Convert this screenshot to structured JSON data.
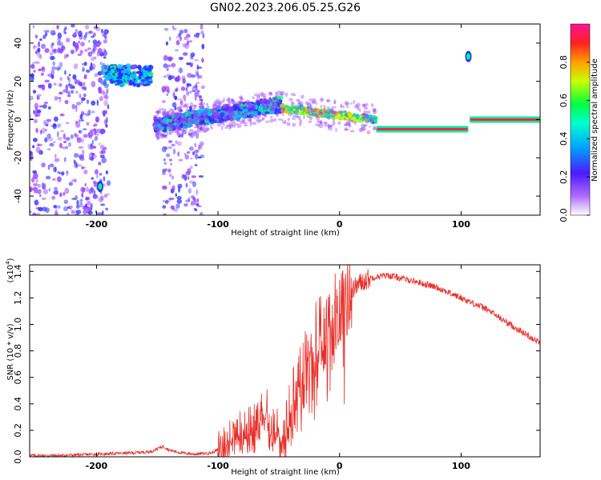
{
  "figure_title": "GN02.2023.206.05.25.G26",
  "chart_data": [
    {
      "type": "heatmap",
      "xlabel": "Height of straight line (km)",
      "ylabel": "Frequency (Hz)",
      "xlim": [
        -255,
        165
      ],
      "ylim": [
        -50,
        50
      ],
      "xticks": [
        -200,
        -100,
        0,
        100
      ],
      "yticks": [
        -40,
        -20,
        0,
        20,
        40
      ],
      "grid": false,
      "colorbar": {
        "label": "Normalized spectral amplitude",
        "range": [
          0,
          1
        ],
        "ticks": [
          "0.0",
          "0.2",
          "0.4",
          "0.6",
          "0.8"
        ],
        "colormap": [
          "#ffffff",
          "#9a3cff",
          "#2a2aff",
          "#00c8ff",
          "#00ff80",
          "#c8ff00",
          "#ffb000",
          "#ff2828",
          "#ff1493"
        ]
      },
      "features": [
        {
          "x_range": [
            -255,
            -190
          ],
          "freq_range": [
            -50,
            50
          ],
          "level": "scattered"
        },
        {
          "x_range": [
            -195,
            -155
          ],
          "freq": 23,
          "level": "medium-high"
        },
        {
          "x": -197,
          "freq": -35,
          "level": "medium"
        },
        {
          "x_range": [
            -145,
            -112
          ],
          "freq_range": [
            -50,
            50
          ],
          "level": "scattered"
        },
        {
          "x_range": [
            -152,
            -48
          ],
          "freq_start": -3,
          "freq_end": 8,
          "level": "medium"
        },
        {
          "x_range": [
            -48,
            30
          ],
          "freq_start": 6,
          "freq_end": 0,
          "level": "high"
        },
        {
          "x_range": [
            30,
            106
          ],
          "freq": -5,
          "level": "high"
        },
        {
          "x": 106,
          "freq": 33,
          "level": "medium"
        },
        {
          "x_range": [
            107,
            165
          ],
          "freq": 0,
          "level": "high"
        }
      ]
    },
    {
      "type": "line",
      "xlabel": "Height of straight line (km)",
      "ylabel": "SNR (10 * v/v)",
      "y_multiplier": "(x10",
      "y_multiplier_exponent": "4",
      "y_multiplier_close": ")",
      "xlim": [
        -255,
        165
      ],
      "ylim": [
        0,
        1.45
      ],
      "xticks": [
        -200,
        -100,
        0,
        100
      ],
      "yticks": [
        "0.0",
        "0.2",
        "0.4",
        "0.6",
        "0.8",
        "1.0",
        "1.2",
        "1.4"
      ],
      "grid": false,
      "color": "#e8302a",
      "series": [
        {
          "x": [
            -255,
            -230,
            -200,
            -170,
            -155,
            -145,
            -140,
            -130,
            -120,
            -105,
            -95,
            -85,
            -78,
            -70,
            -65,
            -62,
            -58,
            -52,
            -48,
            -45,
            -40,
            -35,
            -30,
            -25,
            -20,
            -15,
            -10,
            -5,
            0,
            5,
            10,
            15,
            20,
            25,
            30,
            40,
            50,
            60,
            80,
            100,
            120,
            140,
            165
          ],
          "y": [
            0.01,
            0.01,
            0.02,
            0.03,
            0.04,
            0.08,
            0.05,
            0.03,
            0.02,
            0.03,
            0.08,
            0.15,
            0.2,
            0.25,
            0.3,
            0.42,
            0.33,
            0.2,
            0.15,
            0.18,
            0.35,
            0.5,
            0.6,
            0.8,
            0.85,
            0.9,
            1.0,
            1.1,
            1.15,
            1.2,
            1.25,
            1.3,
            1.33,
            1.35,
            1.36,
            1.37,
            1.35,
            1.33,
            1.28,
            1.2,
            1.12,
            1.0,
            0.86
          ]
        }
      ]
    }
  ]
}
